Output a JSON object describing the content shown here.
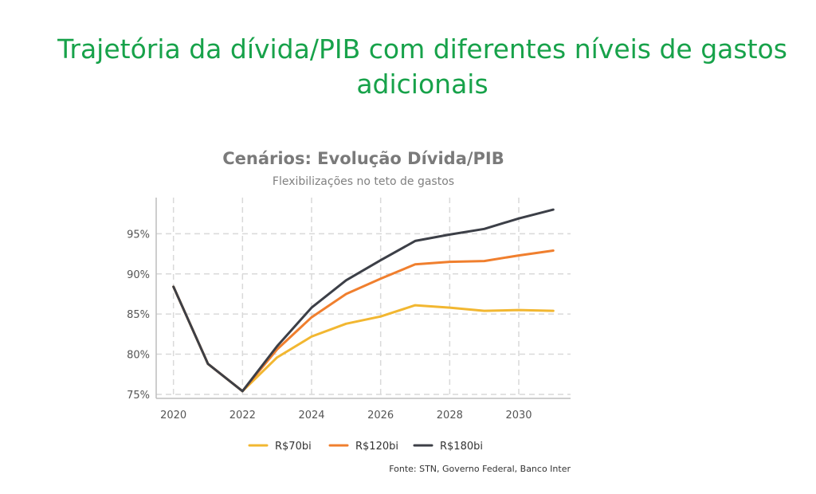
{
  "page": {
    "title_line1": "Trajetória da dívida/PIB com diferentes níveis de gastos",
    "title_line2": "adicionais"
  },
  "chart_data": {
    "type": "line",
    "title": "Cenários: Evolução Dívida/PIB",
    "subtitle": "Flexibilizações no teto de gastos",
    "xlabel": "",
    "ylabel": "",
    "x": [
      2020,
      2021,
      2022,
      2023,
      2024,
      2025,
      2026,
      2027,
      2028,
      2029,
      2030,
      2031
    ],
    "x_ticks": [
      "2020",
      "2022",
      "2024",
      "2026",
      "2028",
      "2030"
    ],
    "x_tick_values": [
      2020,
      2022,
      2024,
      2026,
      2028,
      2030
    ],
    "y_ticks": [
      "75%",
      "80%",
      "85%",
      "90%",
      "95%"
    ],
    "y_tick_values": [
      75,
      80,
      85,
      90,
      95
    ],
    "xlim": [
      2019.5,
      2031.5
    ],
    "ylim": [
      74.5,
      99.5
    ],
    "grid": true,
    "legend_position": "bottom",
    "series": [
      {
        "name": "R$70bi",
        "color": "#f2b731",
        "values": [
          88.4,
          78.8,
          75.4,
          79.6,
          82.2,
          83.8,
          84.7,
          86.1,
          85.8,
          85.4,
          85.5,
          85.4
        ]
      },
      {
        "name": "R$120bi",
        "color": "#f07f2e",
        "values": [
          88.4,
          78.8,
          75.4,
          80.6,
          84.6,
          87.5,
          89.4,
          91.2,
          91.5,
          91.6,
          92.3,
          92.9
        ]
      },
      {
        "name": "R$180bi",
        "color": "#3c3f47",
        "values": [
          88.4,
          78.8,
          75.4,
          81.0,
          85.8,
          89.2,
          91.7,
          94.1,
          94.9,
          95.6,
          96.9,
          98.0
        ]
      }
    ],
    "source": "Fonte: STN, Governo Federal, Banco Inter"
  }
}
